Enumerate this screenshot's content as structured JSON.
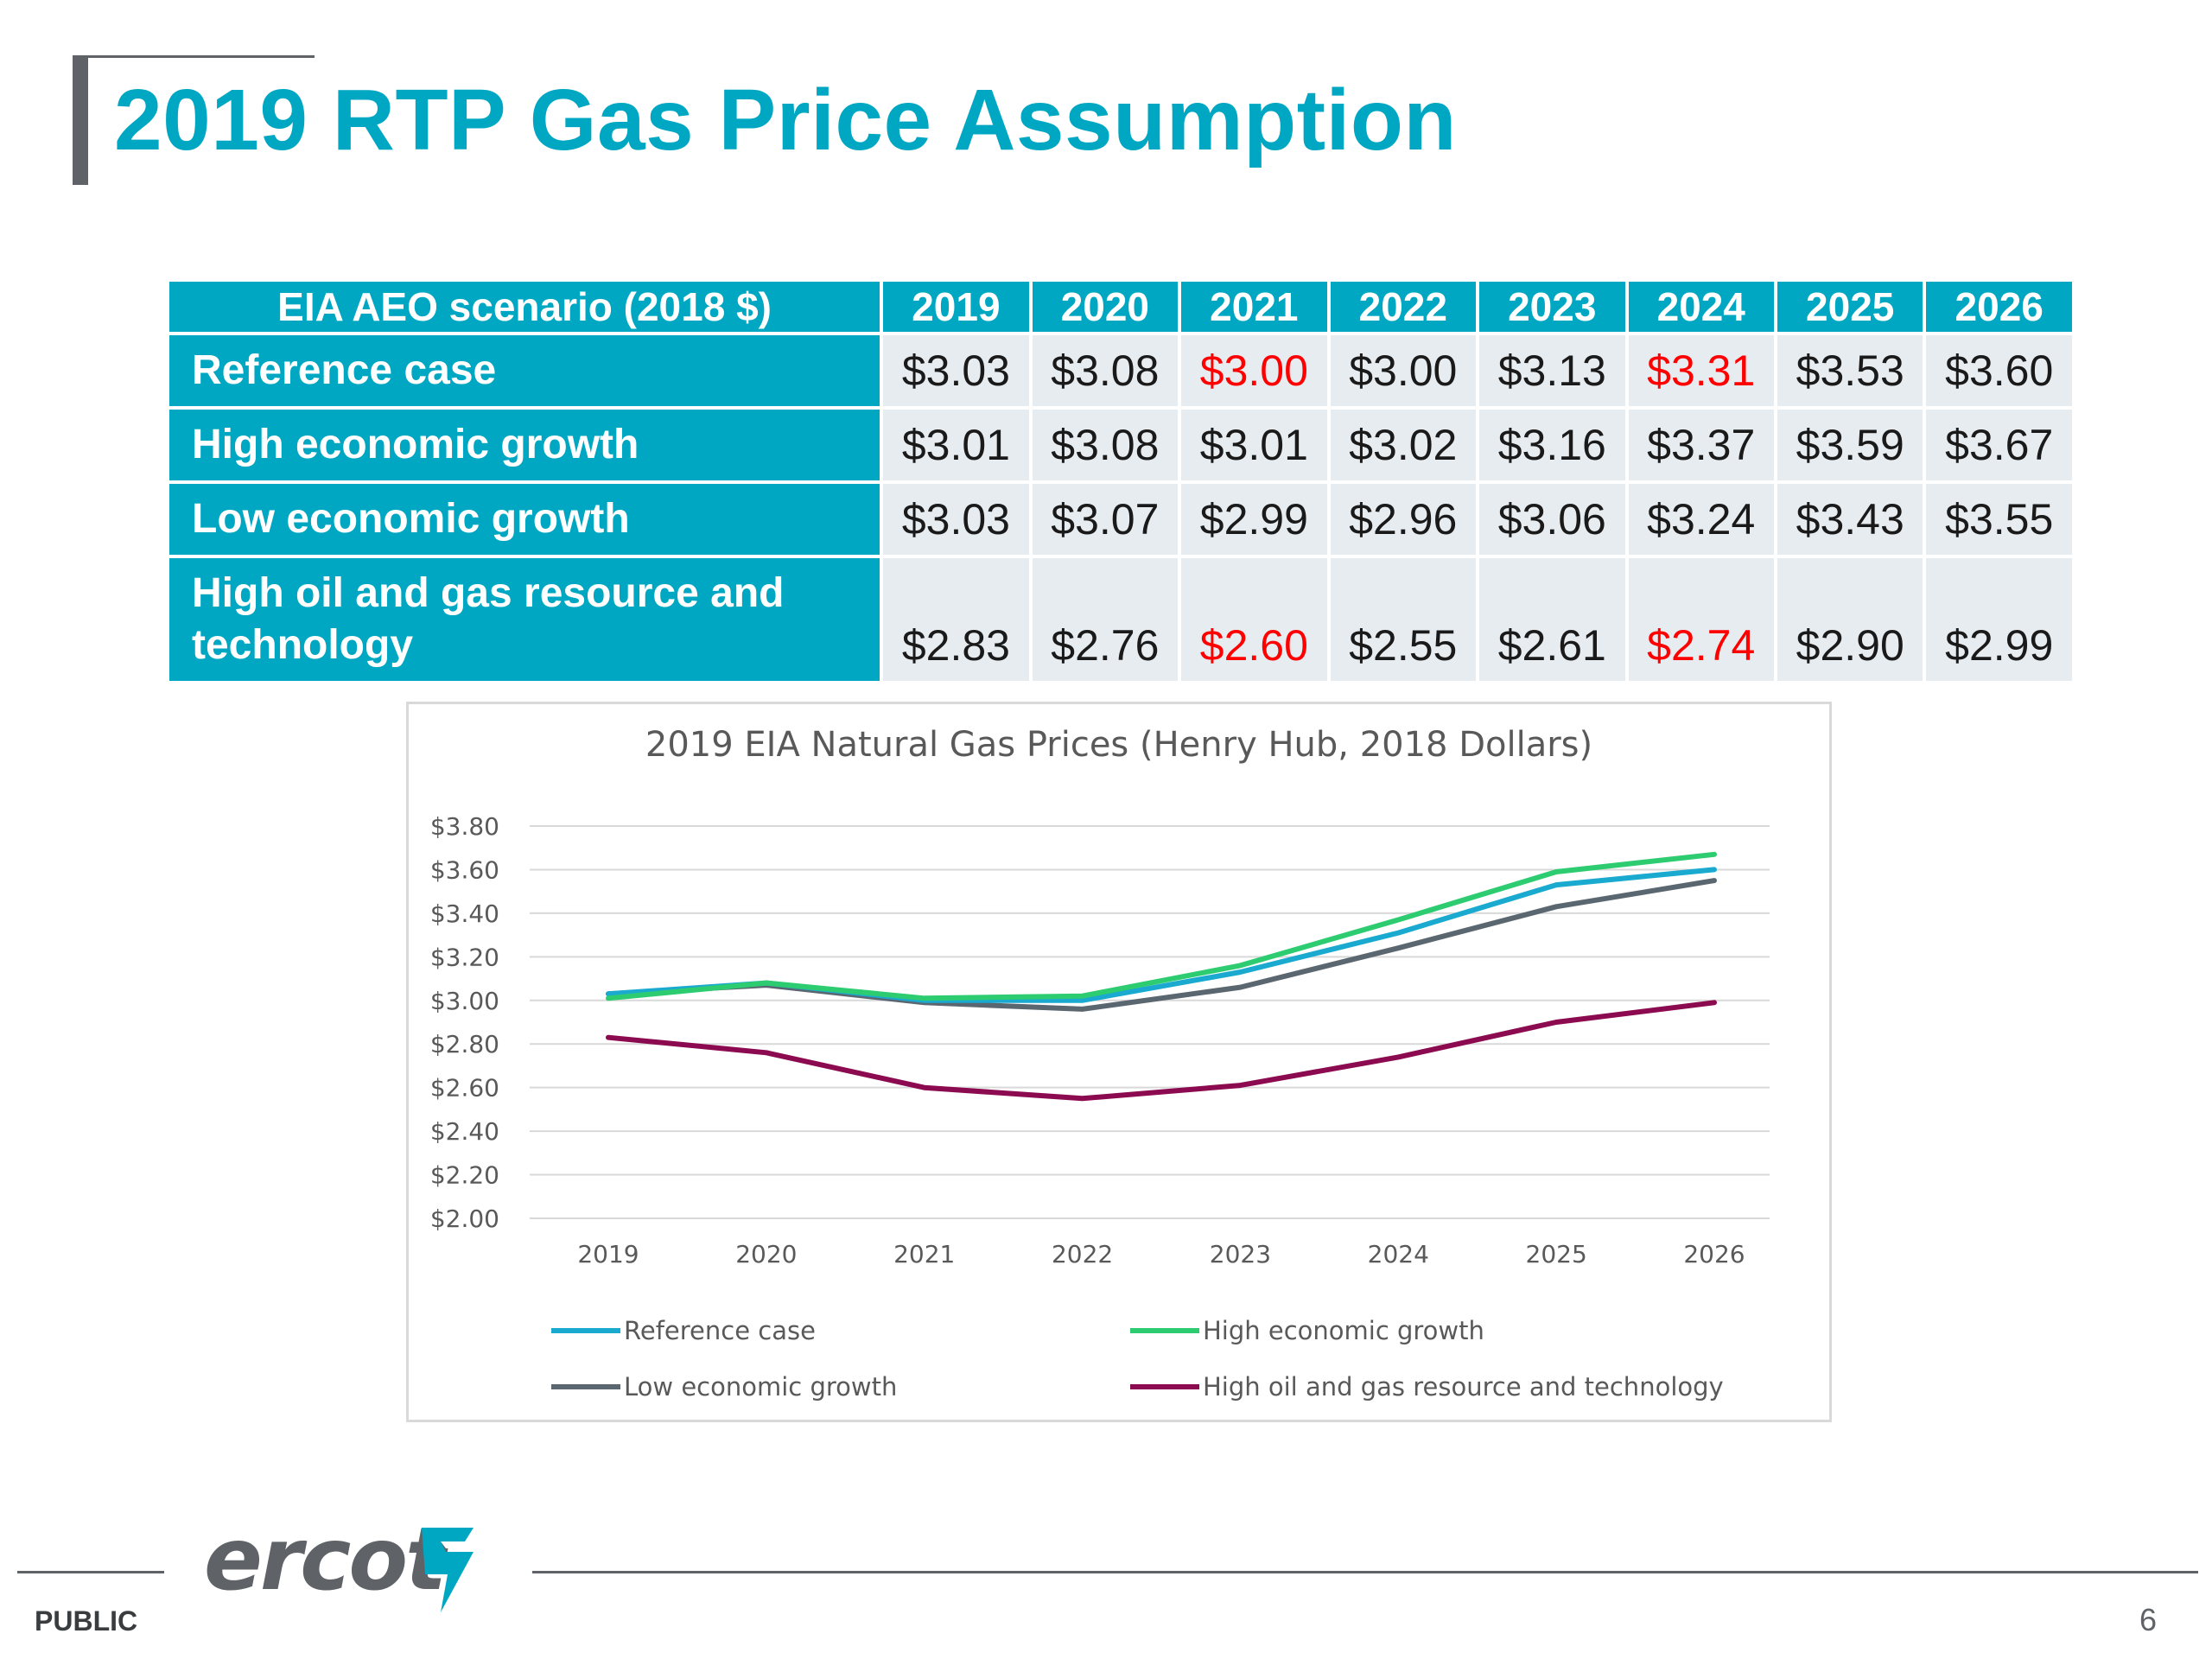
{
  "slide": {
    "title": "2019 RTP Gas Price Assumption",
    "footer_label": "PUBLIC",
    "page_number": "6",
    "logo_text": "ercot"
  },
  "table": {
    "header": [
      "EIA AEO scenario (2018 $)",
      "2019",
      "2020",
      "2021",
      "2022",
      "2023",
      "2024",
      "2025",
      "2026"
    ],
    "rows": [
      {
        "label": "Reference case",
        "values": [
          "$3.03",
          "$3.08",
          "$3.00",
          "$3.00",
          "$3.13",
          "$3.31",
          "$3.53",
          "$3.60"
        ],
        "highlight": [
          2,
          5
        ]
      },
      {
        "label": "High economic growth",
        "values": [
          "$3.01",
          "$3.08",
          "$3.01",
          "$3.02",
          "$3.16",
          "$3.37",
          "$3.59",
          "$3.67"
        ],
        "highlight": []
      },
      {
        "label": "Low economic growth",
        "values": [
          "$3.03",
          "$3.07",
          "$2.99",
          "$2.96",
          "$3.06",
          "$3.24",
          "$3.43",
          "$3.55"
        ],
        "highlight": []
      },
      {
        "label": "High oil and gas resource and technology",
        "values": [
          "$2.83",
          "$2.76",
          "$2.60",
          "$2.55",
          "$2.61",
          "$2.74",
          "$2.90",
          "$2.99"
        ],
        "highlight": [
          2,
          5
        ]
      }
    ],
    "highlight_color": "#ff0000",
    "header_color": "#00a7c2",
    "cell_color": "#e7ecf0"
  },
  "chart_data": {
    "type": "line",
    "title": "2019 EIA Natural Gas Prices (Henry Hub, 2018 Dollars)",
    "x": [
      "2019",
      "2020",
      "2021",
      "2022",
      "2023",
      "2024",
      "2025",
      "2026"
    ],
    "ylim": [
      2.0,
      3.8
    ],
    "yticks": [
      "$2.00",
      "$2.20",
      "$2.40",
      "$2.60",
      "$2.80",
      "$3.00",
      "$3.20",
      "$3.40",
      "$3.60",
      "$3.80"
    ],
    "grid": true,
    "legend_position": "bottom",
    "series": [
      {
        "name": "High oil and gas resource and technology",
        "color": "#8b0a50",
        "values": [
          2.83,
          2.76,
          2.6,
          2.55,
          2.61,
          2.74,
          2.9,
          2.99
        ]
      },
      {
        "name": "Low economic growth",
        "color": "#5b6770",
        "values": [
          3.03,
          3.07,
          2.99,
          2.96,
          3.06,
          3.24,
          3.43,
          3.55
        ]
      },
      {
        "name": "Reference case",
        "color": "#1aaad0",
        "values": [
          3.03,
          3.08,
          3.0,
          3.0,
          3.13,
          3.31,
          3.53,
          3.6
        ]
      },
      {
        "name": "High economic growth",
        "color": "#2ecc71",
        "values": [
          3.01,
          3.08,
          3.01,
          3.02,
          3.16,
          3.37,
          3.59,
          3.67
        ]
      }
    ],
    "legend": [
      {
        "name": "Reference case",
        "color": "#1aaad0"
      },
      {
        "name": "High economic growth",
        "color": "#2ecc71"
      },
      {
        "name": "Low economic growth",
        "color": "#5b6770"
      },
      {
        "name": "High oil and gas resource and technology",
        "color": "#8b0a50"
      }
    ]
  }
}
